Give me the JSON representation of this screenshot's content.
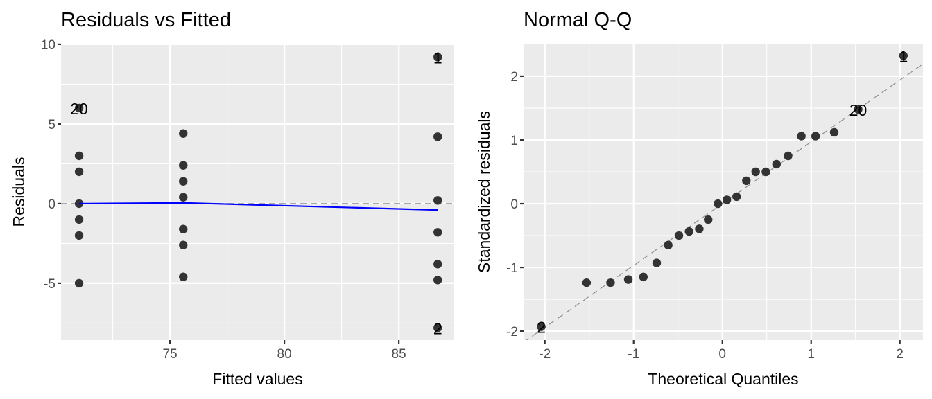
{
  "chart_data": [
    {
      "type": "scatter",
      "title": "Residuals vs Fitted",
      "xlabel": "Fitted values",
      "ylabel": "Residuals",
      "xlim": [
        70.24,
        87.42
      ],
      "ylim": [
        -8.57,
        10.04
      ],
      "x_ticks": [
        75,
        80,
        85
      ],
      "x_tick_labels": [
        "75",
        "80",
        "85"
      ],
      "x_minor": [
        72.5,
        77.5,
        82.5,
        87.5
      ],
      "y_ticks": [
        -5,
        0,
        5,
        10
      ],
      "y_tick_labels": [
        "-5",
        "0",
        "5",
        "10"
      ],
      "y_minor": [
        -7.5,
        -2.5,
        2.5,
        7.5
      ],
      "grid": true,
      "points": [
        {
          "x": 71.03,
          "y": 6.0
        },
        {
          "x": 71.03,
          "y": 3.0
        },
        {
          "x": 71.03,
          "y": 2.0
        },
        {
          "x": 71.03,
          "y": 0.0
        },
        {
          "x": 71.03,
          "y": -1.0
        },
        {
          "x": 71.03,
          "y": -2.0
        },
        {
          "x": 71.03,
          "y": -5.0
        },
        {
          "x": 75.58,
          "y": 4.4
        },
        {
          "x": 75.58,
          "y": 2.4
        },
        {
          "x": 75.58,
          "y": 1.4
        },
        {
          "x": 75.58,
          "y": 0.4
        },
        {
          "x": 75.58,
          "y": -1.6
        },
        {
          "x": 75.58,
          "y": -2.6
        },
        {
          "x": 75.58,
          "y": -4.6
        },
        {
          "x": 86.7,
          "y": 9.2
        },
        {
          "x": 86.7,
          "y": 4.2
        },
        {
          "x": 86.7,
          "y": 0.2
        },
        {
          "x": 86.7,
          "y": -1.8
        },
        {
          "x": 86.7,
          "y": -3.8
        },
        {
          "x": 86.7,
          "y": -4.8
        },
        {
          "x": 86.7,
          "y": -7.8
        }
      ],
      "labels": [
        {
          "text": "20",
          "x": 71.03,
          "y": 6.0
        },
        {
          "text": "1",
          "x": 86.7,
          "y": 9.2
        },
        {
          "text": "2",
          "x": 86.7,
          "y": -7.8
        }
      ],
      "reference_line": {
        "y": 0,
        "style": "dashed"
      },
      "smoother": {
        "color": "#0000ff",
        "x": [
          71.03,
          75.58,
          86.7
        ],
        "y": [
          0.0,
          0.05,
          -0.4
        ]
      }
    },
    {
      "type": "scatter",
      "title": "Normal Q-Q",
      "xlabel": "Theoretical Quantiles",
      "ylabel": "Standardized residuals",
      "xlim": [
        -2.24,
        2.26
      ],
      "ylim": [
        -2.14,
        2.51
      ],
      "x_ticks": [
        -2,
        -1,
        0,
        1,
        2
      ],
      "x_tick_labels": [
        "-2",
        "-1",
        "0",
        "1",
        "2"
      ],
      "x_minor": [
        -1.5,
        -0.5,
        0.5,
        1.5
      ],
      "y_ticks": [
        -2,
        -1,
        0,
        1,
        2
      ],
      "y_tick_labels": [
        "-2",
        "-1",
        "0",
        "1",
        "2"
      ],
      "y_minor": [
        -1.5,
        -0.5,
        0.5,
        1.5
      ],
      "grid": true,
      "points": [
        {
          "x": -2.04,
          "y": -1.93
        },
        {
          "x": -1.53,
          "y": -1.24
        },
        {
          "x": -1.26,
          "y": -1.24
        },
        {
          "x": -1.06,
          "y": -1.19
        },
        {
          "x": -0.89,
          "y": -1.15
        },
        {
          "x": -0.74,
          "y": -0.93
        },
        {
          "x": -0.61,
          "y": -0.65
        },
        {
          "x": -0.49,
          "y": -0.5
        },
        {
          "x": -0.375,
          "y": -0.435
        },
        {
          "x": -0.26,
          "y": -0.395
        },
        {
          "x": -0.16,
          "y": -0.25
        },
        {
          "x": -0.05,
          "y": 0.0
        },
        {
          "x": 0.05,
          "y": 0.06
        },
        {
          "x": 0.16,
          "y": 0.11
        },
        {
          "x": 0.27,
          "y": 0.36
        },
        {
          "x": 0.375,
          "y": 0.5
        },
        {
          "x": 0.49,
          "y": 0.5
        },
        {
          "x": 0.61,
          "y": 0.62
        },
        {
          "x": 0.74,
          "y": 0.75
        },
        {
          "x": 0.89,
          "y": 1.06
        },
        {
          "x": 1.05,
          "y": 1.06
        },
        {
          "x": 1.26,
          "y": 1.12
        },
        {
          "x": 1.53,
          "y": 1.48
        },
        {
          "x": 2.04,
          "y": 2.32
        }
      ],
      "labels": [
        {
          "text": "2",
          "x": -2.04,
          "y": -1.93
        },
        {
          "text": "20",
          "x": 1.53,
          "y": 1.48
        },
        {
          "text": "1",
          "x": 2.04,
          "y": 2.32
        }
      ],
      "reference_line": {
        "slope": 0.97,
        "intercept": 0.0,
        "style": "dashed"
      }
    }
  ]
}
